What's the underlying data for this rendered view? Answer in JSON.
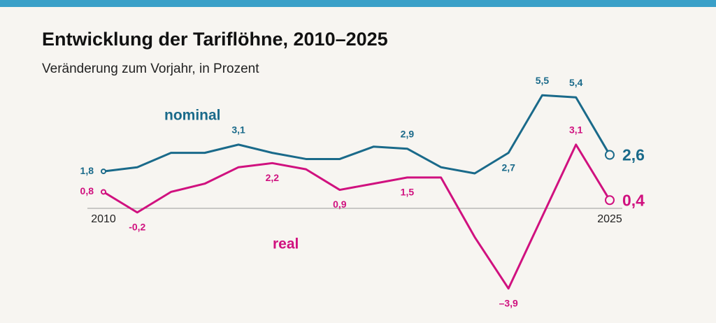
{
  "chart_data": {
    "type": "line",
    "title": "Entwicklung der Tariflöhne, 2010–2025",
    "subtitle": "Veränderung zum Vorjahr, in Prozent",
    "x": [
      2010,
      2011,
      2012,
      2013,
      2014,
      2015,
      2016,
      2017,
      2018,
      2019,
      2020,
      2021,
      2022,
      2023,
      2024,
      2025
    ],
    "xlim": [
      2010,
      2025
    ],
    "xticks": [
      2010,
      2025
    ],
    "ylim": [
      -4,
      6
    ],
    "series": [
      {
        "name": "nominal",
        "color": "#1a6a8a",
        "values": [
          1.8,
          2.0,
          2.7,
          2.7,
          3.1,
          2.7,
          2.4,
          2.4,
          3.0,
          2.9,
          2.0,
          1.7,
          2.7,
          5.5,
          5.4,
          2.6
        ],
        "value_labels": [
          "1,8",
          null,
          null,
          null,
          "3,1",
          null,
          null,
          null,
          null,
          "2,9",
          null,
          null,
          "2,7",
          "5,5",
          "5,4",
          "2,6"
        ]
      },
      {
        "name": "real",
        "color": "#d0117f",
        "values": [
          0.8,
          -0.2,
          0.8,
          1.2,
          2.0,
          2.2,
          1.9,
          0.9,
          1.2,
          1.5,
          1.5,
          -1.4,
          -3.9,
          -0.4,
          3.1,
          0.4
        ],
        "value_labels": [
          "0,8",
          "-0,2",
          null,
          null,
          null,
          "2,2",
          null,
          "0,9",
          null,
          "1,5",
          null,
          null,
          "–3,9",
          null,
          "3,1",
          "0,4"
        ]
      }
    ]
  }
}
